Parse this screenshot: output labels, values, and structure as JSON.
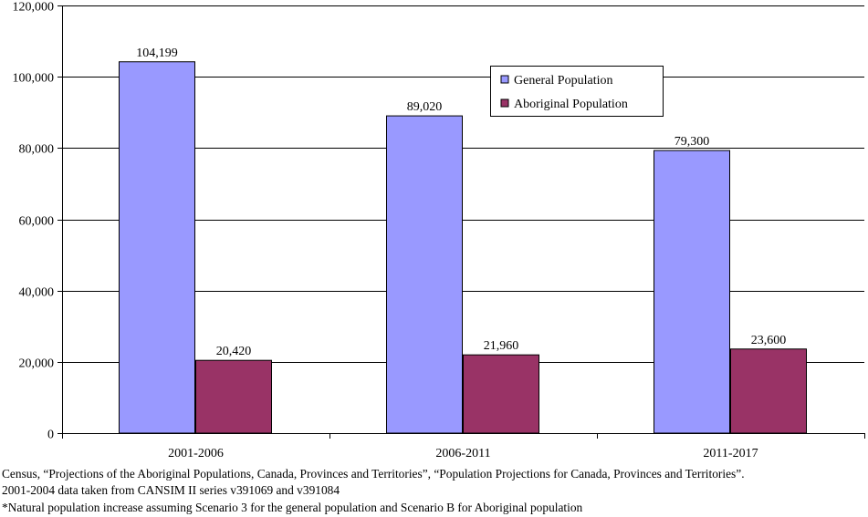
{
  "chart_data": {
    "type": "bar",
    "title": "",
    "xlabel": "",
    "ylabel": "",
    "categories": [
      "2001-2006",
      "2006-2011",
      "2011-2017"
    ],
    "series": [
      {
        "name": "General Population",
        "color": "#9999FF",
        "values": [
          104199,
          89020,
          79300
        ]
      },
      {
        "name": "Aboriginal Population",
        "color": "#993366",
        "values": [
          20420,
          21960,
          23600
        ]
      }
    ],
    "data_labels": [
      [
        "104,199",
        "89,020",
        "79,300"
      ],
      [
        "20,420",
        "21,960",
        "23,600"
      ]
    ],
    "ylim": [
      0,
      120000
    ],
    "yticks": [
      0,
      20000,
      40000,
      60000,
      80000,
      100000,
      120000
    ],
    "ytick_labels": [
      "0",
      "20,000",
      "40,000",
      "60,000",
      "80,000",
      "100,000",
      "120,000"
    ],
    "grid": true,
    "legend_position": "top-right"
  },
  "notes": {
    "line1": "Census, “Projections of the Aboriginal Populations, Canada, Provinces and Territories”, “Population Projections for Canada, Provinces and Territories”.",
    "line2": "2001-2004 data taken from CANSIM II series v391069 and v391084",
    "line3": "*Natural population increase assuming Scenario 3 for the general population and Scenario B for Aboriginal population"
  }
}
